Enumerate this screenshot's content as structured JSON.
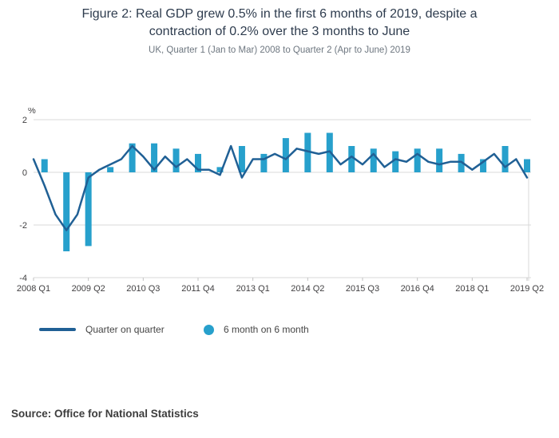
{
  "chart_data": {
    "type": "line",
    "title": "Figure 2: Real GDP grew 0.5% in the first 6 months of 2019, despite a contraction of 0.2% over the 3 months to June",
    "subtitle": "UK, Quarter 1 (Jan to Mar) 2008 to Quarter 2 (Apr to June) 2019",
    "ylabel": "%",
    "ylim": [
      -4,
      2
    ],
    "yticks": [
      2,
      0,
      -2,
      -4
    ],
    "grid": true,
    "legend_position": "bottom",
    "x": [
      "2008 Q1",
      "2008 Q2",
      "2008 Q3",
      "2008 Q4",
      "2009 Q1",
      "2009 Q2",
      "2009 Q3",
      "2009 Q4",
      "2010 Q1",
      "2010 Q2",
      "2010 Q3",
      "2010 Q4",
      "2011 Q1",
      "2011 Q2",
      "2011 Q3",
      "2011 Q4",
      "2012 Q1",
      "2012 Q2",
      "2012 Q3",
      "2012 Q4",
      "2013 Q1",
      "2013 Q2",
      "2013 Q3",
      "2013 Q4",
      "2014 Q1",
      "2014 Q2",
      "2014 Q3",
      "2014 Q4",
      "2015 Q1",
      "2015 Q2",
      "2015 Q3",
      "2015 Q4",
      "2016 Q1",
      "2016 Q2",
      "2016 Q3",
      "2016 Q4",
      "2017 Q1",
      "2017 Q2",
      "2017 Q3",
      "2017 Q4",
      "2018 Q1",
      "2018 Q2",
      "2018 Q3",
      "2018 Q4",
      "2019 Q1",
      "2019 Q2"
    ],
    "x_tick_labels": [
      "2008 Q1",
      "2009 Q2",
      "2010 Q3",
      "2011 Q4",
      "2013 Q1",
      "2014 Q2",
      "2015 Q3",
      "2016 Q4",
      "2018 Q1",
      "2019 Q2"
    ],
    "series": [
      {
        "name": "Quarter on quarter",
        "type": "line",
        "color": "#206095",
        "values": [
          0.5,
          -0.5,
          -1.6,
          -2.2,
          -1.6,
          -0.2,
          0.1,
          0.3,
          0.5,
          1.0,
          0.6,
          0.1,
          0.6,
          0.2,
          0.5,
          0.1,
          0.1,
          -0.1,
          1.0,
          -0.2,
          0.5,
          0.5,
          0.7,
          0.5,
          0.9,
          0.8,
          0.7,
          0.8,
          0.3,
          0.6,
          0.3,
          0.7,
          0.2,
          0.5,
          0.4,
          0.7,
          0.4,
          0.3,
          0.4,
          0.4,
          0.1,
          0.4,
          0.7,
          0.2,
          0.5,
          -0.2
        ]
      },
      {
        "name": "6 month on 6 month",
        "type": "bar",
        "color": "#27a0cc",
        "x": [
          "2008 Q2",
          "2008 Q4",
          "2009 Q2",
          "2009 Q4",
          "2010 Q2",
          "2010 Q4",
          "2011 Q2",
          "2011 Q4",
          "2012 Q2",
          "2012 Q4",
          "2013 Q2",
          "2013 Q4",
          "2014 Q2",
          "2014 Q4",
          "2015 Q2",
          "2015 Q4",
          "2016 Q2",
          "2016 Q4",
          "2017 Q2",
          "2017 Q4",
          "2018 Q2",
          "2018 Q4",
          "2019 Q2"
        ],
        "values": [
          0.5,
          -3.0,
          -2.8,
          0.2,
          1.1,
          1.1,
          0.9,
          0.7,
          0.2,
          1.0,
          0.7,
          1.3,
          1.5,
          1.5,
          1.0,
          0.9,
          0.8,
          0.9,
          0.9,
          0.7,
          0.5,
          1.0,
          0.5
        ]
      }
    ]
  },
  "source": {
    "prefix": "Source:",
    "text": "Office for National Statistics"
  }
}
